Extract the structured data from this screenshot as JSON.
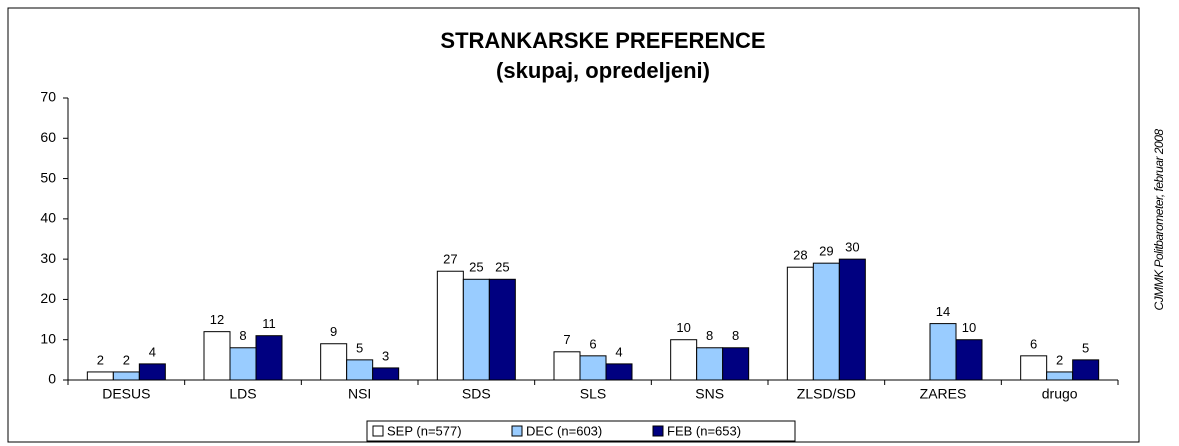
{
  "chart_data": {
    "type": "bar",
    "title": "STRANKARSKE PREFERENCE",
    "subtitle": "(skupaj, opredeljeni)",
    "annotation": "CJMMK Politbarometer, februar 2008",
    "categories": [
      "DESUS",
      "LDS",
      "NSI",
      "SDS",
      "SLS",
      "SNS",
      "ZLSD/SD",
      "ZARES",
      "drugo"
    ],
    "series": [
      {
        "name": "SEP (n=577)",
        "color": "#ffffff",
        "values": [
          2,
          12,
          9,
          27,
          7,
          10,
          28,
          null,
          6
        ]
      },
      {
        "name": "DEC (n=603)",
        "color": "#99ccff",
        "values": [
          2,
          8,
          5,
          25,
          6,
          8,
          29,
          14,
          2
        ]
      },
      {
        "name": "FEB (n=653)",
        "color": "#000080",
        "values": [
          4,
          11,
          3,
          25,
          4,
          8,
          30,
          10,
          5
        ]
      }
    ],
    "ylim": [
      0,
      70
    ],
    "yticks": [
      0,
      10,
      20,
      30,
      40,
      50,
      60,
      70
    ],
    "grid": false,
    "legend": "bottom"
  }
}
